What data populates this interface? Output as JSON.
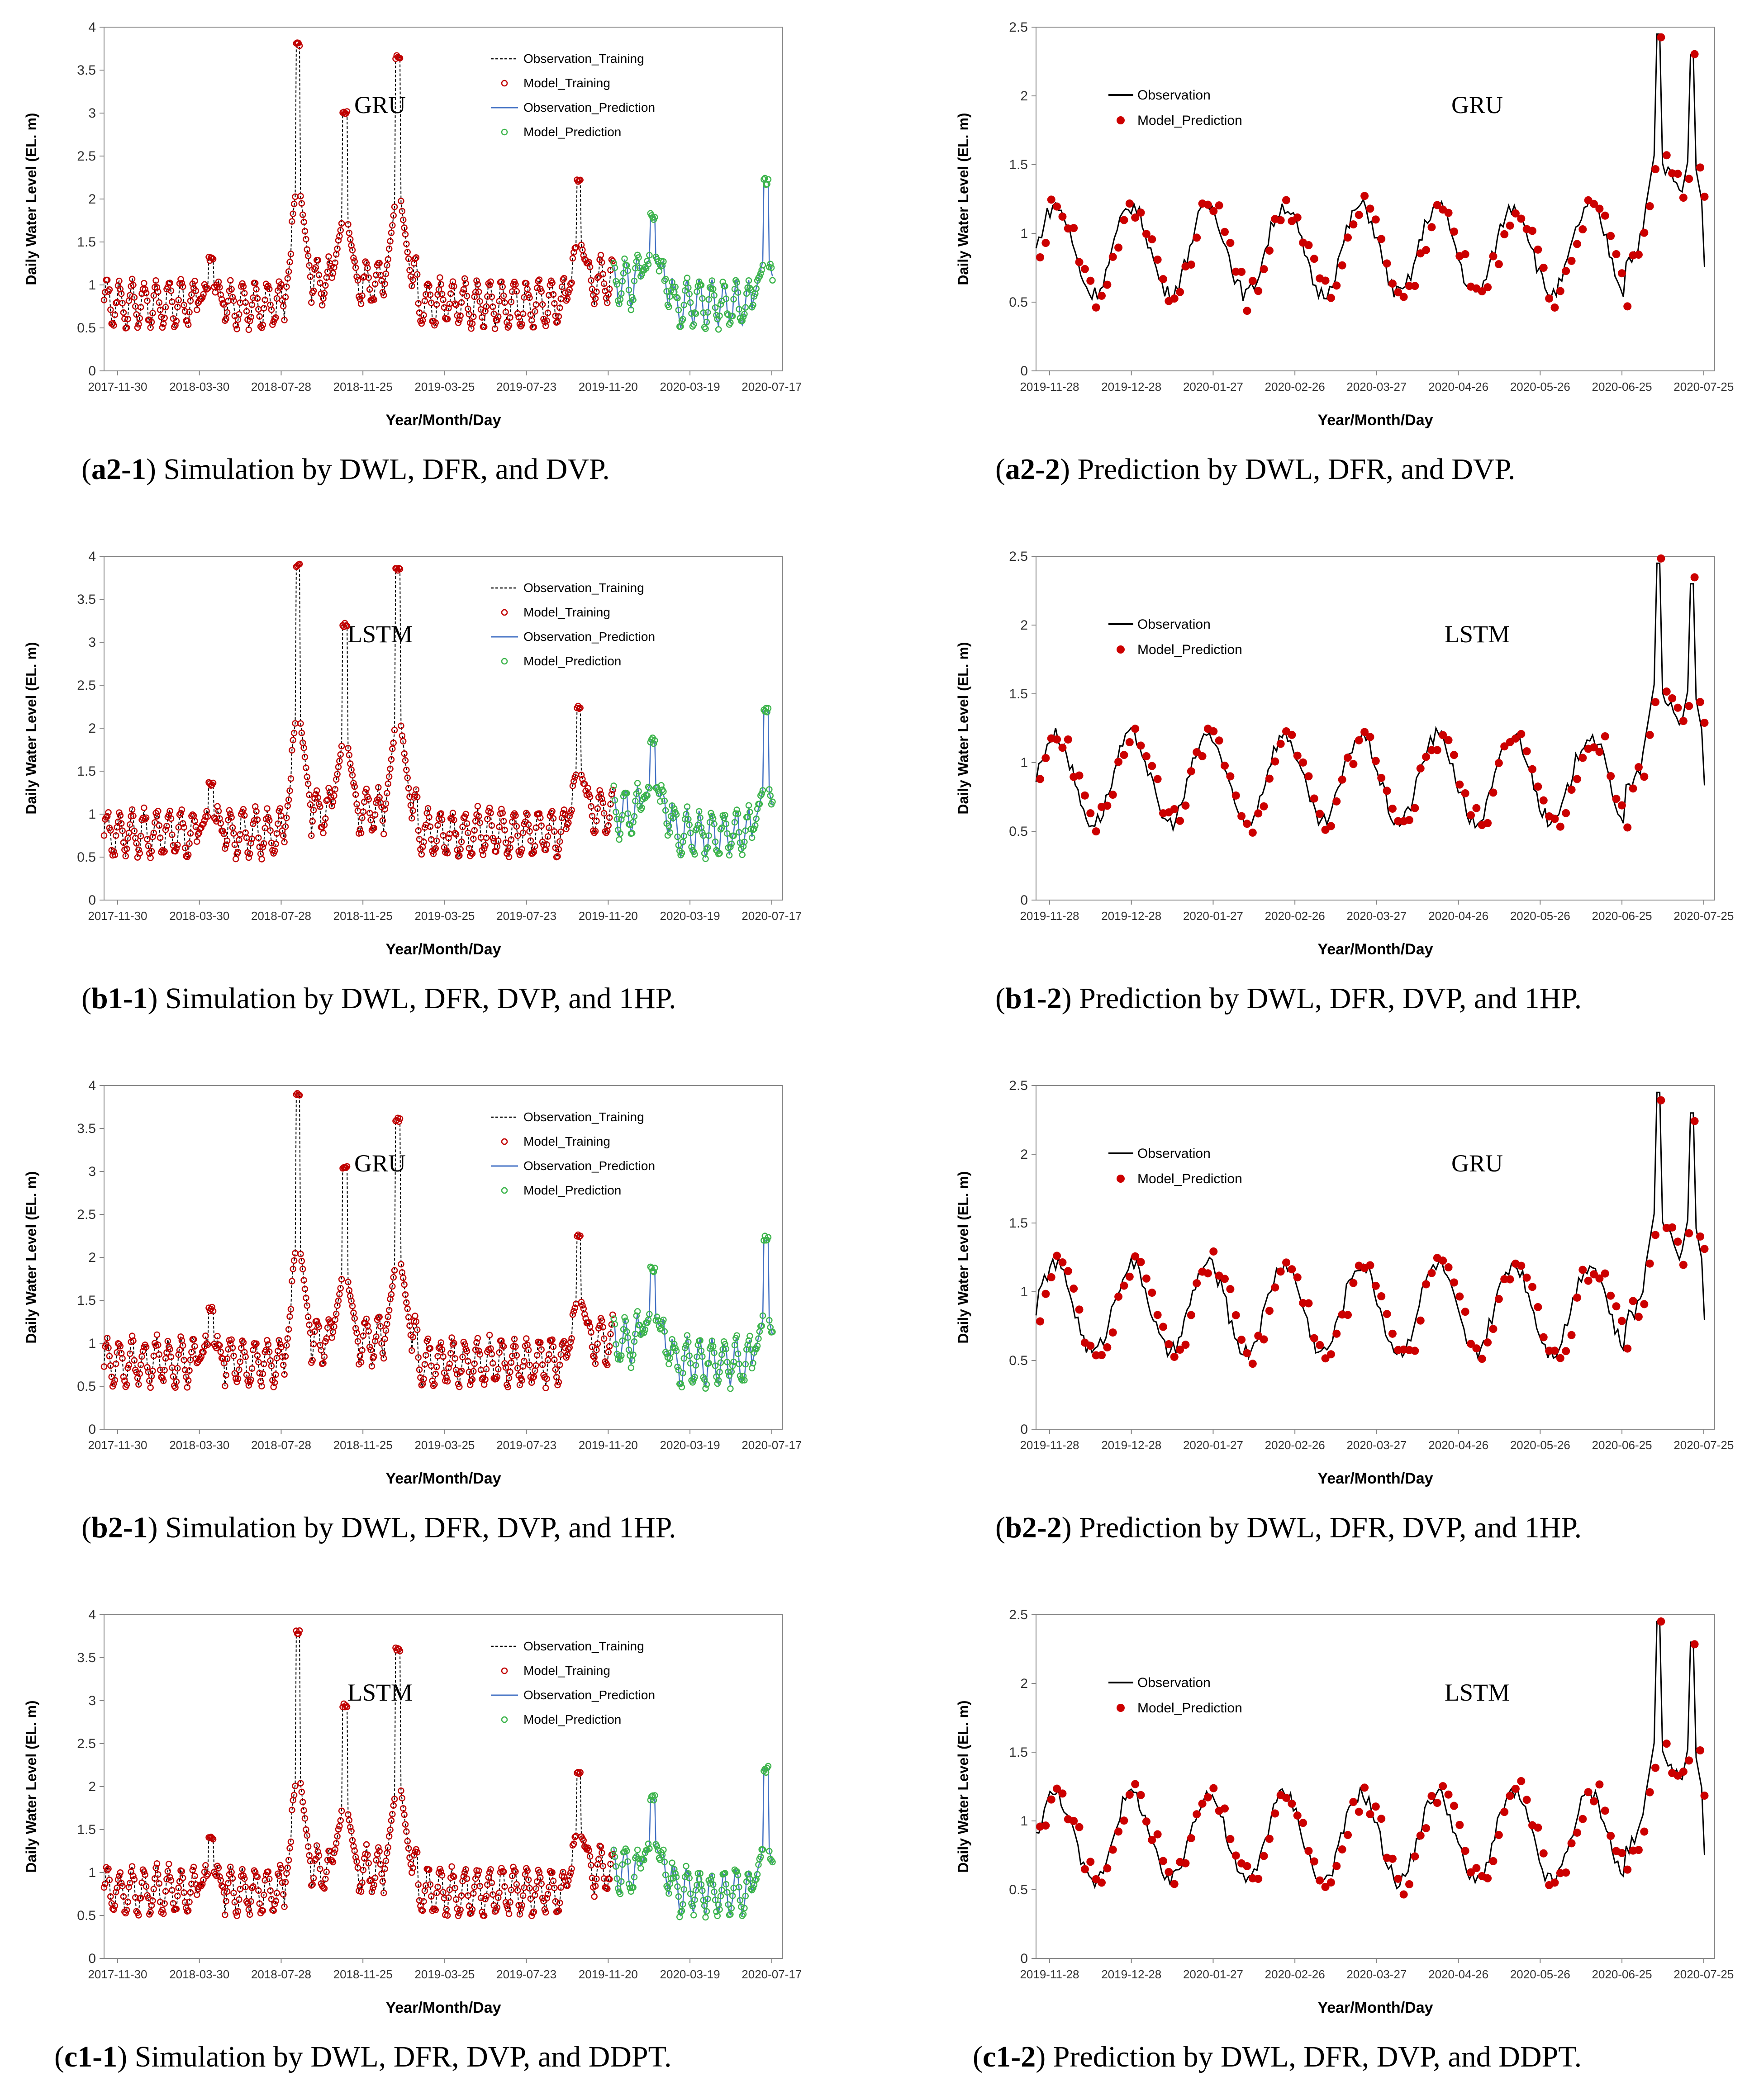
{
  "colors": {
    "obs_training": "#000000",
    "model_training": "#c00000",
    "obs_prediction": "#4472c4",
    "model_prediction": "#3cb44b",
    "obs_pred_panel": "#000000",
    "model_pred_panel": "#cc0000"
  },
  "panels": [
    {
      "caption": {
        "tag": "a2-1",
        "text": "Simulation by DWL, DFR, and DVP."
      },
      "chart_data": {
        "type": "line",
        "model": "GRU",
        "xlabel": "Year/Month/Day",
        "ylabel": "Daily Water Level (EL. m)",
        "ylim": [
          0,
          4
        ],
        "yticks": [
          "0",
          "0.5",
          "1",
          "1.5",
          "2",
          "2.5",
          "3",
          "3.5",
          "4"
        ],
        "xticks": [
          "2017-11-30",
          "2018-03-30",
          "2018-07-28",
          "2018-11-25",
          "2019-03-25",
          "2019-07-23",
          "2019-11-20",
          "2020-03-19",
          "2020-07-17"
        ],
        "legend": [
          "Observation_Training",
          "Model_Training",
          "Observation_Prediction",
          "Model_Prediction"
        ],
        "peaks": [
          [
            0.16,
            1.3
          ],
          [
            0.29,
            3.55
          ],
          [
            0.36,
            2.75
          ],
          [
            0.44,
            3.4
          ],
          [
            0.71,
            1.95
          ],
          [
            0.82,
            1.55
          ],
          [
            0.99,
            2.2
          ]
        ],
        "series": [
          {
            "name": "Observation_Training",
            "x_range": [
              0.0,
              0.75
            ]
          },
          {
            "name": "Model_Training",
            "x_range": [
              0.0,
              0.75
            ]
          },
          {
            "name": "Observation_Prediction",
            "x_range": [
              0.75,
              1.0
            ]
          },
          {
            "name": "Model_Prediction",
            "x_range": [
              0.75,
              1.0
            ]
          }
        ]
      }
    },
    {
      "caption": {
        "tag": "a2-2",
        "text": "Prediction by DWL, DFR, and DVP."
      },
      "chart_data": {
        "type": "line",
        "model": "GRU",
        "xlabel": "Year/Month/Day",
        "ylabel": "Daily Water Level (EL. m)",
        "ylim": [
          0,
          2.5
        ],
        "yticks": [
          "0",
          "0.5",
          "1",
          "1.5",
          "2",
          "2.5"
        ],
        "xticks": [
          "2019-11-28",
          "2019-12-28",
          "2020-01-27",
          "2020-02-26",
          "2020-03-27",
          "2020-04-26",
          "2020-05-26",
          "2020-06-25",
          "2020-07-25"
        ],
        "legend": [
          "Observation",
          "Model_Prediction"
        ],
        "peaks": [
          [
            0.93,
            2.2
          ],
          [
            0.98,
            2.05
          ]
        ],
        "series": [
          {
            "name": "Observation"
          },
          {
            "name": "Model_Prediction"
          }
        ]
      }
    },
    {
      "caption": {
        "tag": "b1-1",
        "text": "Simulation by DWL, DFR, DVP, and 1HP."
      },
      "chart_data": {
        "type": "line",
        "model": "LSTM",
        "xlabel": "Year/Month/Day",
        "ylabel": "Daily Water Level (EL. m)",
        "ylim": [
          0,
          4
        ],
        "yticks": [
          "0",
          "0.5",
          "1",
          "1.5",
          "2",
          "2.5",
          "3",
          "3.5",
          "4"
        ],
        "xticks": [
          "2017-11-30",
          "2018-03-30",
          "2018-07-28",
          "2018-11-25",
          "2019-03-25",
          "2019-07-23",
          "2019-11-20",
          "2020-03-19",
          "2020-07-17"
        ],
        "legend": [
          "Observation_Training",
          "Model_Training",
          "Observation_Prediction",
          "Model_Prediction"
        ],
        "peaks": [
          [
            0.16,
            1.35
          ],
          [
            0.29,
            3.65
          ],
          [
            0.36,
            2.95
          ],
          [
            0.44,
            3.6
          ],
          [
            0.71,
            2.0
          ],
          [
            0.82,
            1.6
          ],
          [
            0.99,
            2.2
          ]
        ],
        "series": [
          {
            "name": "Observation_Training",
            "x_range": [
              0.0,
              0.75
            ]
          },
          {
            "name": "Model_Training",
            "x_range": [
              0.0,
              0.75
            ]
          },
          {
            "name": "Observation_Prediction",
            "x_range": [
              0.75,
              1.0
            ]
          },
          {
            "name": "Model_Prediction",
            "x_range": [
              0.75,
              1.0
            ]
          }
        ]
      }
    },
    {
      "caption": {
        "tag": "b1-2",
        "text": "Prediction by DWL, DFR, DVP, and 1HP."
      },
      "chart_data": {
        "type": "line",
        "model": "LSTM",
        "xlabel": "Year/Month/Day",
        "ylabel": "Daily Water Level (EL. m)",
        "ylim": [
          0,
          2.5
        ],
        "yticks": [
          "0",
          "0.5",
          "1",
          "1.5",
          "2",
          "2.5"
        ],
        "xticks": [
          "2019-11-28",
          "2019-12-28",
          "2020-01-27",
          "2020-02-26",
          "2020-03-27",
          "2020-04-26",
          "2020-05-26",
          "2020-06-25",
          "2020-07-25"
        ],
        "legend": [
          "Observation",
          "Model_Prediction"
        ],
        "peaks": [
          [
            0.93,
            2.2
          ],
          [
            0.98,
            2.05
          ]
        ],
        "series": [
          {
            "name": "Observation"
          },
          {
            "name": "Model_Prediction"
          }
        ]
      }
    },
    {
      "caption": {
        "tag": "b2-1",
        "text": "Simulation by DWL, DFR, DVP, and 1HP."
      },
      "chart_data": {
        "type": "line",
        "model": "GRU",
        "xlabel": "Year/Month/Day",
        "ylabel": "Daily Water Level (EL. m)",
        "ylim": [
          0,
          4
        ],
        "yticks": [
          "0",
          "0.5",
          "1",
          "1.5",
          "2",
          "2.5",
          "3",
          "3.5",
          "4"
        ],
        "xticks": [
          "2017-11-30",
          "2018-03-30",
          "2018-07-28",
          "2018-11-25",
          "2019-03-25",
          "2019-07-23",
          "2019-11-20",
          "2020-03-19",
          "2020-07-17"
        ],
        "legend": [
          "Observation_Training",
          "Model_Training",
          "Observation_Prediction",
          "Model_Prediction"
        ],
        "peaks": [
          [
            0.16,
            1.4
          ],
          [
            0.29,
            3.65
          ],
          [
            0.36,
            2.8
          ],
          [
            0.44,
            3.35
          ],
          [
            0.71,
            2.0
          ],
          [
            0.82,
            1.6
          ],
          [
            0.99,
            2.2
          ]
        ],
        "series": [
          {
            "name": "Observation_Training",
            "x_range": [
              0.0,
              0.75
            ]
          },
          {
            "name": "Model_Training",
            "x_range": [
              0.0,
              0.75
            ]
          },
          {
            "name": "Observation_Prediction",
            "x_range": [
              0.75,
              1.0
            ]
          },
          {
            "name": "Model_Prediction",
            "x_range": [
              0.75,
              1.0
            ]
          }
        ]
      }
    },
    {
      "caption": {
        "tag": "b2-2",
        "text": "Prediction by DWL, DFR, DVP, and 1HP."
      },
      "chart_data": {
        "type": "line",
        "model": "GRU",
        "xlabel": "Year/Month/Day",
        "ylabel": "Daily Water Level (EL. m)",
        "ylim": [
          0,
          2.5
        ],
        "yticks": [
          "0",
          "0.5",
          "1",
          "1.5",
          "2",
          "2.5"
        ],
        "xticks": [
          "2019-11-28",
          "2019-12-28",
          "2020-01-27",
          "2020-02-26",
          "2020-03-27",
          "2020-04-26",
          "2020-05-26",
          "2020-06-25",
          "2020-07-25"
        ],
        "legend": [
          "Observation",
          "Model_Prediction"
        ],
        "peaks": [
          [
            0.93,
            2.2
          ],
          [
            0.98,
            2.05
          ]
        ],
        "series": [
          {
            "name": "Observation"
          },
          {
            "name": "Model_Prediction"
          }
        ]
      }
    },
    {
      "caption": {
        "tag": "c1-1",
        "text": "Simulation by DWL, DFR, DVP, and DDPT."
      },
      "chart_data": {
        "type": "line",
        "model": "LSTM",
        "xlabel": "Year/Month/Day",
        "ylabel": "Daily Water Level (EL. m)",
        "ylim": [
          0,
          4
        ],
        "yticks": [
          "0",
          "0.5",
          "1",
          "1.5",
          "2",
          "2.5",
          "3",
          "3.5",
          "4"
        ],
        "xticks": [
          "2017-11-30",
          "2018-03-30",
          "2018-07-28",
          "2018-11-25",
          "2019-03-25",
          "2019-07-23",
          "2019-11-20",
          "2020-03-19",
          "2020-07-17"
        ],
        "legend": [
          "Observation_Training",
          "Model_Training",
          "Observation_Prediction",
          "Model_Prediction"
        ],
        "peaks": [
          [
            0.16,
            1.4
          ],
          [
            0.29,
            3.55
          ],
          [
            0.36,
            2.7
          ],
          [
            0.44,
            3.35
          ],
          [
            0.71,
            1.9
          ],
          [
            0.82,
            1.6
          ],
          [
            0.99,
            2.2
          ]
        ],
        "series": [
          {
            "name": "Observation_Training",
            "x_range": [
              0.0,
              0.75
            ]
          },
          {
            "name": "Model_Training",
            "x_range": [
              0.0,
              0.75
            ]
          },
          {
            "name": "Observation_Prediction",
            "x_range": [
              0.75,
              1.0
            ]
          },
          {
            "name": "Model_Prediction",
            "x_range": [
              0.75,
              1.0
            ]
          }
        ]
      }
    },
    {
      "caption": {
        "tag": "c1-2",
        "text": "Prediction by DWL, DFR, DVP, and DDPT."
      },
      "chart_data": {
        "type": "line",
        "model": "LSTM",
        "xlabel": "Year/Month/Day",
        "ylabel": "Daily Water Level (EL. m)",
        "ylim": [
          0,
          2.5
        ],
        "yticks": [
          "0",
          "0.5",
          "1",
          "1.5",
          "2",
          "2.5"
        ],
        "xticks": [
          "2019-11-28",
          "2019-12-28",
          "2020-01-27",
          "2020-02-26",
          "2020-03-27",
          "2020-04-26",
          "2020-05-26",
          "2020-06-25",
          "2020-07-25"
        ],
        "legend": [
          "Observation",
          "Model_Prediction"
        ],
        "peaks": [
          [
            0.93,
            2.2
          ],
          [
            0.98,
            2.05
          ]
        ],
        "series": [
          {
            "name": "Observation"
          },
          {
            "name": "Model_Prediction"
          }
        ]
      }
    }
  ]
}
